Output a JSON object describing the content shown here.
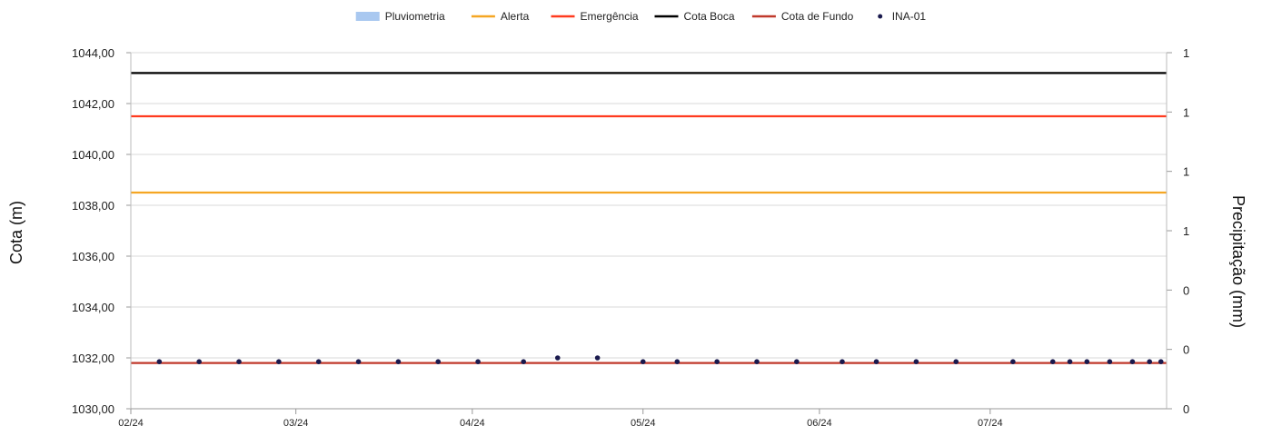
{
  "chart_data": {
    "type": "line",
    "legend_position": "top",
    "grid": true,
    "xlabel": "",
    "ylabel": "Cota (m)",
    "y2label": "Precipitação (mm)",
    "x_domain": [
      "2024-02-01",
      "2024-08-01"
    ],
    "x_ticks": [
      {
        "date": "2024-02-01",
        "label": "02/24"
      },
      {
        "date": "2024-03-01",
        "label": "03/24"
      },
      {
        "date": "2024-04-01",
        "label": "04/24"
      },
      {
        "date": "2024-05-01",
        "label": "05/24"
      },
      {
        "date": "2024-06-01",
        "label": "06/24"
      },
      {
        "date": "2024-07-01",
        "label": "07/24"
      }
    ],
    "ylim": [
      1030,
      1044
    ],
    "y_ticks": [
      "1030,00",
      "1032,00",
      "1034,00",
      "1036,00",
      "1038,00",
      "1040,00",
      "1042,00",
      "1044,00"
    ],
    "y2lim": [
      0,
      1
    ],
    "y2_ticks": [
      "0",
      "0",
      "0",
      "1",
      "1",
      "1",
      "1"
    ],
    "legend": [
      {
        "name": "Pluviometria",
        "kind": "bar",
        "color": "#a9c8f0"
      },
      {
        "name": "Alerta",
        "kind": "line",
        "color": "#f5a623"
      },
      {
        "name": "Emergência",
        "kind": "line",
        "color": "#ff3b1f"
      },
      {
        "name": "Cota Boca",
        "kind": "line",
        "color": "#000000"
      },
      {
        "name": "Cota de Fundo",
        "kind": "line",
        "color": "#c0392b"
      },
      {
        "name": "INA-01",
        "kind": "point",
        "color": "#1a1a4e"
      }
    ],
    "series": [
      {
        "name": "Pluviometria",
        "type": "bar",
        "color": "#a9c8f0",
        "points": []
      },
      {
        "name": "Alerta",
        "type": "hline",
        "color": "#f5a623",
        "value": 1038.5
      },
      {
        "name": "Emergência",
        "type": "hline",
        "color": "#ff3b1f",
        "value": 1041.5
      },
      {
        "name": "Cota Boca",
        "type": "hline",
        "color": "#000000",
        "value": 1043.2
      },
      {
        "name": "Cota de Fundo",
        "type": "hline",
        "color": "#c0392b",
        "value": 1031.8
      },
      {
        "name": "INA-01",
        "type": "scatter",
        "color": "#1a1a4e",
        "points": [
          {
            "x": "2024-02-06",
            "y": 1031.85
          },
          {
            "x": "2024-02-13",
            "y": 1031.85
          },
          {
            "x": "2024-02-20",
            "y": 1031.85
          },
          {
            "x": "2024-02-27",
            "y": 1031.85
          },
          {
            "x": "2024-03-05",
            "y": 1031.85
          },
          {
            "x": "2024-03-12",
            "y": 1031.85
          },
          {
            "x": "2024-03-19",
            "y": 1031.85
          },
          {
            "x": "2024-03-26",
            "y": 1031.85
          },
          {
            "x": "2024-04-02",
            "y": 1031.85
          },
          {
            "x": "2024-04-10",
            "y": 1031.85
          },
          {
            "x": "2024-04-16",
            "y": 1032.0
          },
          {
            "x": "2024-04-23",
            "y": 1032.0
          },
          {
            "x": "2024-05-01",
            "y": 1031.85
          },
          {
            "x": "2024-05-07",
            "y": 1031.85
          },
          {
            "x": "2024-05-14",
            "y": 1031.85
          },
          {
            "x": "2024-05-21",
            "y": 1031.85
          },
          {
            "x": "2024-05-28",
            "y": 1031.85
          },
          {
            "x": "2024-06-05",
            "y": 1031.85
          },
          {
            "x": "2024-06-11",
            "y": 1031.85
          },
          {
            "x": "2024-06-18",
            "y": 1031.85
          },
          {
            "x": "2024-06-25",
            "y": 1031.85
          },
          {
            "x": "2024-07-05",
            "y": 1031.85
          },
          {
            "x": "2024-07-12",
            "y": 1031.85
          },
          {
            "x": "2024-07-15",
            "y": 1031.85
          },
          {
            "x": "2024-07-18",
            "y": 1031.85
          },
          {
            "x": "2024-07-22",
            "y": 1031.85
          },
          {
            "x": "2024-07-26",
            "y": 1031.85
          },
          {
            "x": "2024-07-29",
            "y": 1031.85
          },
          {
            "x": "2024-07-31",
            "y": 1031.85
          }
        ]
      }
    ]
  }
}
